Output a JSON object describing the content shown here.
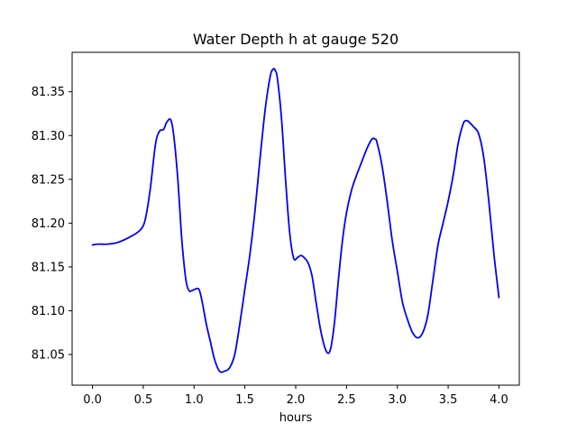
{
  "chart_data": {
    "type": "line",
    "title": "Water Depth h at gauge 520",
    "xlabel": "hours",
    "ylabel": "",
    "xlim": [
      -0.2,
      4.2
    ],
    "ylim": [
      81.015,
      81.395
    ],
    "xticks": [
      0.0,
      0.5,
      1.0,
      1.5,
      2.0,
      2.5,
      3.0,
      3.5,
      4.0
    ],
    "xtick_labels": [
      "0.0",
      "0.5",
      "1.0",
      "1.5",
      "2.0",
      "2.5",
      "3.0",
      "3.5",
      "4.0"
    ],
    "yticks": [
      81.05,
      81.1,
      81.15,
      81.2,
      81.25,
      81.3,
      81.35
    ],
    "ytick_labels": [
      "81.05",
      "81.10",
      "81.15",
      "81.20",
      "81.25",
      "81.30",
      "81.35"
    ],
    "grid": false,
    "legend": "none",
    "series": [
      {
        "color": "#0000ff",
        "x": [
          0.0,
          0.05,
          0.15,
          0.25,
          0.35,
          0.45,
          0.5,
          0.53,
          0.57,
          0.62,
          0.66,
          0.7,
          0.73,
          0.77,
          0.8,
          0.84,
          0.88,
          0.92,
          0.95,
          0.98,
          1.02,
          1.05,
          1.08,
          1.12,
          1.16,
          1.2,
          1.25,
          1.3,
          1.35,
          1.4,
          1.45,
          1.5,
          1.55,
          1.6,
          1.65,
          1.7,
          1.75,
          1.78,
          1.8,
          1.82,
          1.86,
          1.9,
          1.94,
          1.98,
          2.02,
          2.05,
          2.08,
          2.12,
          2.16,
          2.2,
          2.25,
          2.3,
          2.34,
          2.38,
          2.42,
          2.46,
          2.5,
          2.55,
          2.6,
          2.65,
          2.7,
          2.75,
          2.78,
          2.8,
          2.85,
          2.9,
          2.95,
          3.0,
          3.05,
          3.1,
          3.15,
          3.2,
          3.25,
          3.3,
          3.35,
          3.4,
          3.45,
          3.5,
          3.55,
          3.6,
          3.65,
          3.68,
          3.7,
          3.75,
          3.8,
          3.85,
          3.9,
          3.95,
          4.0
        ],
        "y": [
          81.175,
          81.176,
          81.176,
          81.178,
          81.183,
          81.19,
          81.197,
          81.21,
          81.24,
          81.29,
          81.305,
          81.307,
          81.315,
          81.318,
          81.3,
          81.25,
          81.18,
          81.135,
          81.123,
          81.123,
          81.125,
          81.124,
          81.11,
          81.085,
          81.065,
          81.045,
          81.031,
          81.031,
          81.035,
          81.05,
          81.085,
          81.125,
          81.165,
          81.215,
          81.275,
          81.33,
          81.368,
          81.376,
          81.374,
          81.365,
          81.32,
          81.25,
          81.19,
          81.16,
          81.161,
          81.163,
          81.161,
          81.155,
          81.14,
          81.11,
          81.075,
          81.054,
          81.055,
          81.085,
          81.135,
          81.18,
          81.212,
          81.238,
          81.255,
          81.27,
          81.285,
          81.296,
          81.296,
          81.292,
          81.265,
          81.225,
          81.18,
          81.145,
          81.11,
          81.09,
          81.075,
          81.069,
          81.075,
          81.095,
          81.135,
          81.175,
          81.2,
          81.225,
          81.255,
          81.292,
          81.314,
          81.317,
          81.316,
          81.31,
          81.302,
          81.275,
          81.225,
          81.165,
          81.115
        ]
      }
    ]
  }
}
